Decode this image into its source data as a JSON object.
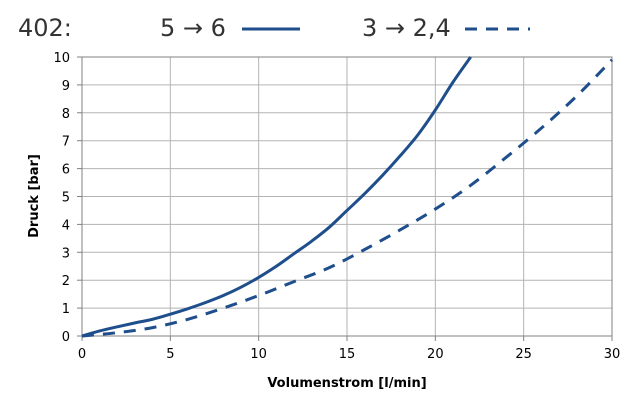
{
  "header": {
    "label": "402:"
  },
  "chart_data": {
    "type": "line",
    "title": "402:",
    "xlabel": "Volumenstrom [l/min]",
    "ylabel": "Druck [bar]",
    "xlim": [
      0,
      30
    ],
    "ylim": [
      0,
      10
    ],
    "xticks": [
      0,
      5,
      10,
      15,
      20,
      25,
      30
    ],
    "yticks": [
      0,
      1,
      2,
      3,
      4,
      5,
      6,
      7,
      8,
      9,
      10
    ],
    "grid": true,
    "legend_position": "top",
    "series": [
      {
        "name": "5 → 6",
        "style": "solid",
        "color": "#1f4e8c",
        "x": [
          0,
          1,
          2,
          3,
          4,
          5,
          6,
          7,
          8,
          9,
          10,
          11,
          12,
          13,
          14,
          15,
          16,
          17,
          18,
          19,
          20,
          21,
          22
        ],
        "y": [
          0,
          0.18,
          0.33,
          0.47,
          0.6,
          0.78,
          0.98,
          1.2,
          1.45,
          1.75,
          2.1,
          2.5,
          2.95,
          3.4,
          3.9,
          4.5,
          5.1,
          5.75,
          6.45,
          7.2,
          8.1,
          9.1,
          10
        ]
      },
      {
        "name": "3 → 2,4",
        "style": "dashed",
        "color": "#1f4e8c",
        "x": [
          0,
          2,
          4,
          6,
          8,
          10,
          12,
          14,
          16,
          18,
          20,
          22,
          24,
          26,
          28,
          30
        ],
        "y": [
          0,
          0.12,
          0.3,
          0.6,
          1.0,
          1.45,
          1.95,
          2.45,
          3.1,
          3.8,
          4.55,
          5.4,
          6.4,
          7.45,
          8.6,
          9.9
        ]
      }
    ]
  }
}
